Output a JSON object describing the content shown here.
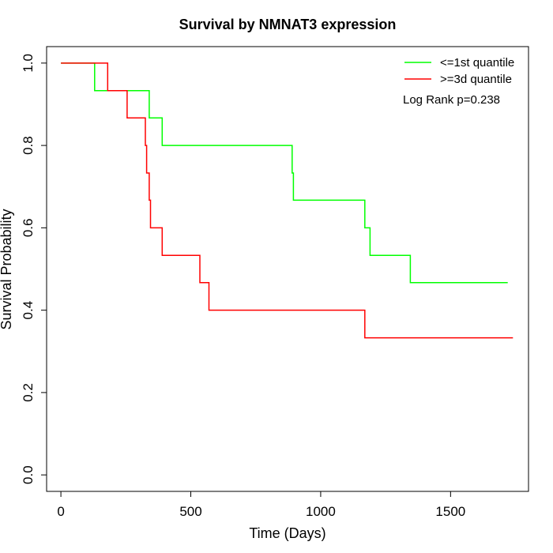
{
  "chart_data": {
    "type": "line",
    "title": "Survival by NMNAT3 expression",
    "xlabel": "Time (Days)",
    "ylabel": "Survival Probability",
    "xlim": [
      -55,
      1800
    ],
    "ylim": [
      -0.04,
      1.04
    ],
    "x_ticks": [
      0,
      500,
      1000,
      1500
    ],
    "y_ticks": [
      0.0,
      0.2,
      0.4,
      0.6,
      0.8,
      1.0
    ],
    "x_tick_labels": [
      "0",
      "500",
      "1000",
      "1500"
    ],
    "y_tick_labels": [
      "0.0",
      "0.2",
      "0.4",
      "0.6",
      "0.8",
      "1.0"
    ],
    "grid": false,
    "legend_position": "top-right",
    "annotation": "Log Rank p=0.238",
    "series": [
      {
        "name": "<=1st quantile",
        "color": "#00ff00",
        "step": true,
        "points": [
          [
            0,
            1.0
          ],
          [
            130,
            1.0
          ],
          [
            130,
            0.933
          ],
          [
            340,
            0.933
          ],
          [
            340,
            0.867
          ],
          [
            390,
            0.867
          ],
          [
            390,
            0.8
          ],
          [
            890,
            0.8
          ],
          [
            890,
            0.733
          ],
          [
            895,
            0.733
          ],
          [
            895,
            0.667
          ],
          [
            1170,
            0.667
          ],
          [
            1170,
            0.6
          ],
          [
            1190,
            0.6
          ],
          [
            1190,
            0.533
          ],
          [
            1345,
            0.533
          ],
          [
            1345,
            0.467
          ],
          [
            1720,
            0.467
          ]
        ]
      },
      {
        "name": ">=3d quantile",
        "color": "#ff0000",
        "step": true,
        "points": [
          [
            0,
            1.0
          ],
          [
            180,
            1.0
          ],
          [
            180,
            0.933
          ],
          [
            255,
            0.933
          ],
          [
            255,
            0.867
          ],
          [
            325,
            0.867
          ],
          [
            325,
            0.8
          ],
          [
            330,
            0.8
          ],
          [
            330,
            0.733
          ],
          [
            340,
            0.733
          ],
          [
            340,
            0.667
          ],
          [
            345,
            0.667
          ],
          [
            345,
            0.6
          ],
          [
            390,
            0.6
          ],
          [
            390,
            0.533
          ],
          [
            535,
            0.533
          ],
          [
            535,
            0.467
          ],
          [
            570,
            0.467
          ],
          [
            570,
            0.4
          ],
          [
            1170,
            0.4
          ],
          [
            1170,
            0.333
          ],
          [
            1740,
            0.333
          ]
        ]
      }
    ]
  }
}
